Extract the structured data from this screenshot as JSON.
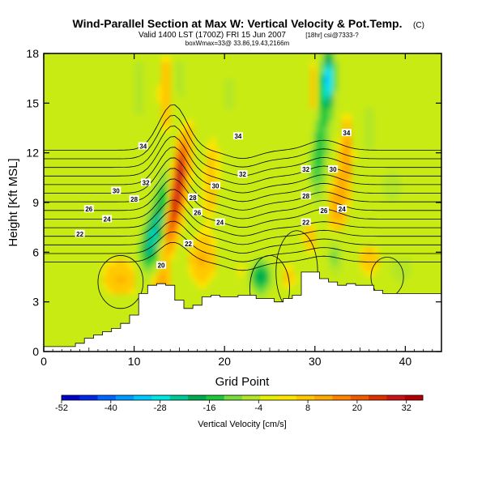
{
  "header": {
    "title": "Wind-Parallel Section at Max W: Vertical Velocity & Pot.Temp.",
    "copyright": "(C)",
    "valid_line": "Valid 1400 LST (1700Z) FRI 15 Jun 2007",
    "valid_suffix": "[18hr] csi@7333-?",
    "box_line": "boxWmax=33@ 33.86,19.43,2166m"
  },
  "chart_data": {
    "type": "heatmap",
    "xlabel": "Grid Point",
    "ylabel": "Height [Kft MSL]",
    "xlim": [
      0,
      44
    ],
    "ylim": [
      0,
      18
    ],
    "xticks": [
      0,
      10,
      20,
      30,
      40
    ],
    "yticks": [
      0,
      3,
      6,
      9,
      12,
      15,
      18
    ],
    "colorbar": {
      "label": "Vertical Velocity [cm/s]",
      "range": [
        -52,
        36
      ],
      "ticks": [
        -52,
        -40,
        -28,
        -16,
        -4,
        8,
        20,
        32
      ],
      "colors": [
        "#0000c8",
        "#0028e6",
        "#0064ff",
        "#009bff",
        "#00c8ff",
        "#00e6e6",
        "#00c896",
        "#00aa50",
        "#1ec83c",
        "#78dc3c",
        "#b4e628",
        "#e6f000",
        "#ffe600",
        "#ffc800",
        "#ffaa00",
        "#ff8200",
        "#f05a00",
        "#dc3200",
        "#c81414",
        "#b40000"
      ]
    },
    "terrain_kft": [
      0.3,
      0.3,
      0.3,
      0.3,
      0.5,
      0.8,
      1.0,
      1.2,
      1.4,
      1.7,
      2.2,
      3.5,
      4.0,
      4.1,
      4.0,
      3.1,
      2.6,
      2.8,
      3.3,
      3.4,
      3.3,
      3.3,
      3.4,
      3.4,
      3.2,
      3.2,
      3.0,
      3.2,
      3.4,
      4.8,
      4.8,
      4.4,
      4.2,
      4.0,
      4.1,
      4.0,
      4.0,
      3.7,
      3.5,
      3.5,
      3.5,
      3.5,
      3.5,
      3.5,
      3.5
    ],
    "theta_contour_labels": [
      {
        "value": "34",
        "x": 11,
        "y": 12.4
      },
      {
        "value": "34",
        "x": 21.5,
        "y": 13.0
      },
      {
        "value": "34",
        "x": 33.5,
        "y": 13.2
      },
      {
        "value": "32",
        "x": 11.3,
        "y": 10.2
      },
      {
        "value": "32",
        "x": 22.0,
        "y": 10.7
      },
      {
        "value": "32",
        "x": 29.0,
        "y": 11.0
      },
      {
        "value": "30",
        "x": 8.0,
        "y": 9.7
      },
      {
        "value": "30",
        "x": 19.0,
        "y": 10.0
      },
      {
        "value": "30",
        "x": 32.0,
        "y": 11.0
      },
      {
        "value": "28",
        "x": 10.0,
        "y": 9.2
      },
      {
        "value": "28",
        "x": 16.5,
        "y": 9.3
      },
      {
        "value": "28",
        "x": 29.0,
        "y": 9.4
      },
      {
        "value": "26",
        "x": 5.0,
        "y": 8.6
      },
      {
        "value": "26",
        "x": 17.0,
        "y": 8.4
      },
      {
        "value": "26",
        "x": 31.0,
        "y": 8.5
      },
      {
        "value": "24",
        "x": 7.0,
        "y": 8.0
      },
      {
        "value": "24",
        "x": 19.5,
        "y": 7.8
      },
      {
        "value": "24",
        "x": 33.0,
        "y": 8.6
      },
      {
        "value": "22",
        "x": 4.0,
        "y": 7.1
      },
      {
        "value": "22",
        "x": 16.0,
        "y": 6.5
      },
      {
        "value": "22",
        "x": 29.0,
        "y": 7.8
      },
      {
        "value": "20",
        "x": 13.0,
        "y": 5.2
      }
    ]
  }
}
